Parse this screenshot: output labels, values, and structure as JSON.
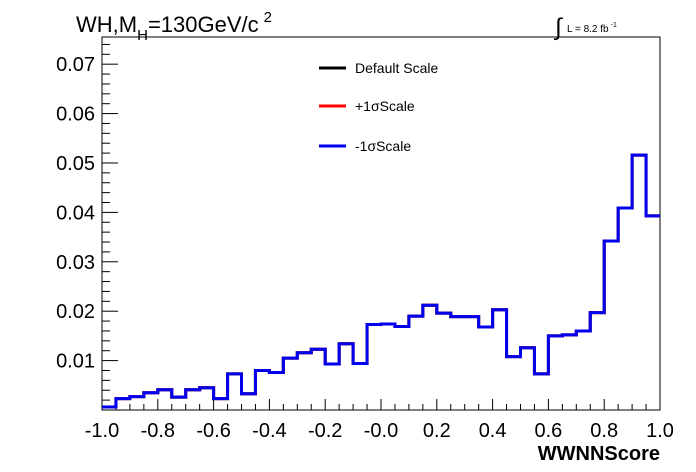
{
  "chart_data": {
    "type": "histogram",
    "title": {
      "main": "WH,M",
      "sub": "H",
      "rest": "=130GeV/c",
      "sup": "2"
    },
    "lumi": {
      "integral": "∫",
      "text": "L = 8.2 fb",
      "sup": "-1"
    },
    "xlabel": "WWNNScore",
    "ylabel": "",
    "xlim": [
      -1.0,
      1.0
    ],
    "ylim": [
      0.0,
      0.0755
    ],
    "x_ticks": [
      "-1.0",
      "-0.8",
      "-0.6",
      "-0.4",
      "-0.2",
      "-0.0",
      "0.2",
      "0.4",
      "0.6",
      "0.8",
      "1.0"
    ],
    "y_ticks": [
      "0.01",
      "0.02",
      "0.03",
      "0.04",
      "0.05",
      "0.06",
      "0.07"
    ],
    "bin_edges": [
      -1.0,
      -0.95,
      -0.9,
      -0.85,
      -0.8,
      -0.75,
      -0.7,
      -0.65,
      -0.6,
      -0.55,
      -0.5,
      -0.45,
      -0.4,
      -0.35,
      -0.3,
      -0.25,
      -0.2,
      -0.15,
      -0.1,
      -0.05,
      0.0,
      0.05,
      0.1,
      0.15,
      0.2,
      0.25,
      0.3,
      0.35,
      0.4,
      0.45,
      0.5,
      0.55,
      0.6,
      0.65,
      0.7,
      0.75,
      0.8,
      0.85,
      0.9,
      0.95,
      1.0
    ],
    "series": [
      {
        "name": "Default Scale",
        "color": "#000000",
        "values": [
          0.0006,
          0.0023,
          0.0027,
          0.0035,
          0.0041,
          0.0026,
          0.0041,
          0.0045,
          0.0023,
          0.0073,
          0.0033,
          0.008,
          0.0076,
          0.0105,
          0.0116,
          0.0123,
          0.0093,
          0.0134,
          0.0094,
          0.0173,
          0.0174,
          0.0169,
          0.019,
          0.0212,
          0.0196,
          0.0189,
          0.0189,
          0.0168,
          0.0203,
          0.0108,
          0.0126,
          0.0073,
          0.015,
          0.0152,
          0.016,
          0.0197,
          0.0342,
          0.0409,
          0.0516,
          0.0393
        ]
      },
      {
        "name": "+1σScale",
        "color": "#ff0000",
        "values": [
          0.0006,
          0.0023,
          0.0027,
          0.0035,
          0.0041,
          0.0026,
          0.0041,
          0.0045,
          0.0023,
          0.0073,
          0.0033,
          0.008,
          0.0076,
          0.0105,
          0.0116,
          0.0123,
          0.0093,
          0.0134,
          0.0094,
          0.0173,
          0.0174,
          0.0169,
          0.019,
          0.0212,
          0.0196,
          0.0189,
          0.0189,
          0.0168,
          0.0203,
          0.0108,
          0.0126,
          0.0073,
          0.015,
          0.0152,
          0.016,
          0.0197,
          0.0342,
          0.0409,
          0.0516,
          0.0393
        ]
      },
      {
        "name": "-1σScale",
        "color": "#0000ee",
        "values": [
          0.0006,
          0.0023,
          0.0027,
          0.0035,
          0.0041,
          0.0026,
          0.0041,
          0.0045,
          0.0023,
          0.0073,
          0.0033,
          0.008,
          0.0076,
          0.0105,
          0.0116,
          0.0123,
          0.0093,
          0.0134,
          0.0094,
          0.0173,
          0.0174,
          0.0169,
          0.019,
          0.0212,
          0.0196,
          0.0189,
          0.0189,
          0.0168,
          0.0203,
          0.0108,
          0.0126,
          0.0073,
          0.015,
          0.0152,
          0.016,
          0.0197,
          0.0342,
          0.0409,
          0.0516,
          0.0393
        ]
      }
    ],
    "legend_position": "top-center",
    "grid": false
  }
}
